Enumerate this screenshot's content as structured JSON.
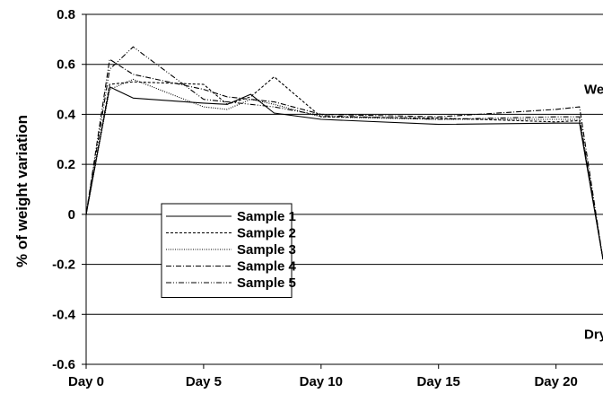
{
  "chart_data": {
    "type": "line",
    "title": "",
    "xlabel": "",
    "ylabel": "% of weight variation",
    "xlim": [
      0,
      22
    ],
    "ylim": [
      -0.6,
      0.8
    ],
    "x_ticks": [
      0,
      5,
      10,
      15,
      20
    ],
    "x_tick_labels": [
      "Day 0",
      "Day 5",
      "Day 10",
      "Day 15",
      "Day 20"
    ],
    "y_ticks": [
      -0.6,
      -0.4,
      -0.2,
      0,
      0.2,
      0.4,
      0.6,
      0.8
    ],
    "y_tick_labels": [
      "-0.6",
      "-0.4",
      "-0.2",
      "0",
      "0.2",
      "0.4",
      "0.6",
      "0.8"
    ],
    "grid": "horizontal",
    "legend_position": "left-center",
    "annotations": [
      {
        "text": "Wet",
        "x": 21.2,
        "y": 0.5
      },
      {
        "text": "Dry",
        "x": 21.2,
        "y": -0.48
      }
    ],
    "series": [
      {
        "name": "Sample 1",
        "dash": "",
        "x": [
          0,
          1,
          2,
          5,
          6,
          7,
          8,
          10,
          15,
          20,
          21,
          22
        ],
        "y": [
          0,
          0.51,
          0.465,
          0.445,
          0.44,
          0.48,
          0.405,
          0.38,
          0.36,
          0.365,
          0.365,
          -0.18
        ]
      },
      {
        "name": "Sample 2",
        "dash": "3,2",
        "x": [
          0,
          1,
          2,
          5,
          6,
          7,
          8,
          10,
          15,
          20,
          21,
          22
        ],
        "y": [
          0,
          0.52,
          0.53,
          0.52,
          0.44,
          0.47,
          0.55,
          0.39,
          0.385,
          0.37,
          0.375,
          -0.18
        ]
      },
      {
        "name": "Sample 3",
        "dash": "1,1.5",
        "x": [
          0,
          1,
          2,
          5,
          6,
          7,
          8,
          10,
          15,
          20,
          21,
          22
        ],
        "y": [
          0,
          0.5,
          0.54,
          0.43,
          0.42,
          0.46,
          0.44,
          0.39,
          0.38,
          0.38,
          0.38,
          -0.18
        ]
      },
      {
        "name": "Sample 4",
        "dash": "6,2,1,2",
        "x": [
          0,
          1,
          2,
          5,
          6,
          7,
          8,
          10,
          15,
          20,
          21,
          22
        ],
        "y": [
          0,
          0.62,
          0.56,
          0.5,
          0.47,
          0.46,
          0.45,
          0.4,
          0.39,
          0.42,
          0.43,
          -0.18
        ]
      },
      {
        "name": "Sample 5",
        "dash": "6,2,1,2,1,2",
        "x": [
          0,
          1,
          2,
          5,
          6,
          7,
          8,
          10,
          15,
          20,
          21,
          22
        ],
        "y": [
          0,
          0.58,
          0.67,
          0.46,
          0.45,
          0.44,
          0.43,
          0.395,
          0.38,
          0.39,
          0.39,
          -0.18
        ]
      }
    ]
  }
}
